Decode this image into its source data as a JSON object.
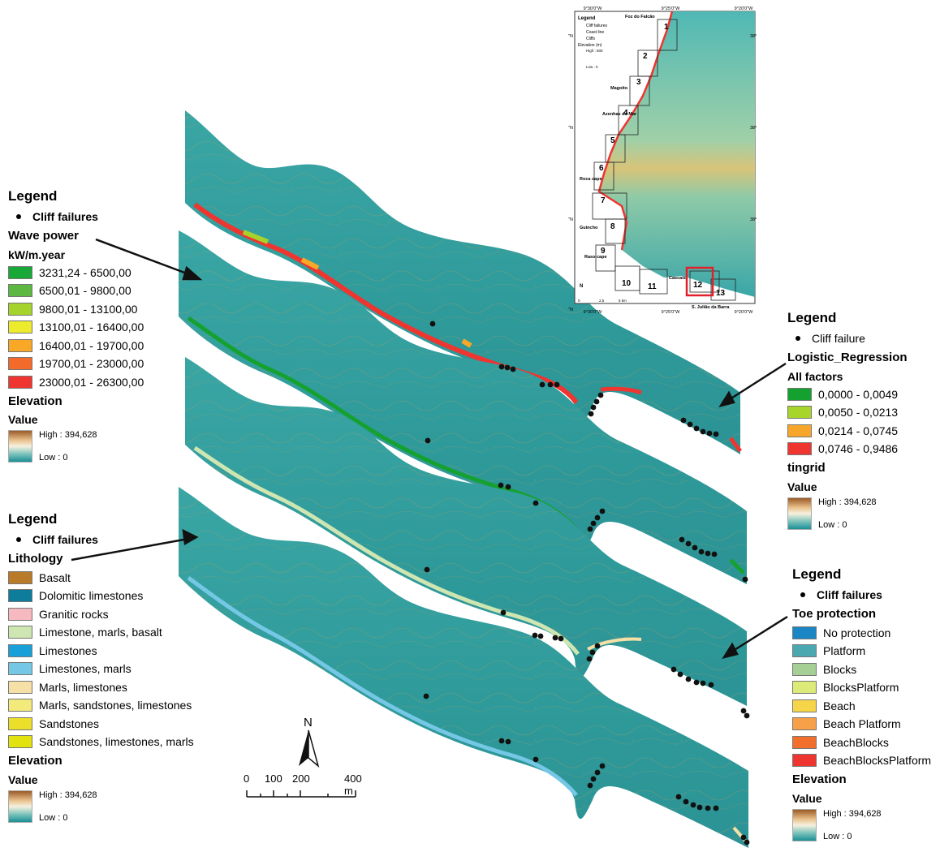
{
  "legend_wave": {
    "title": "Legend",
    "failures_label": "Cliff failures",
    "layer_title": "Wave power",
    "unit": "kW/m.year",
    "classes": [
      {
        "label": "3231,24 - 6500,00",
        "color": "#18a838"
      },
      {
        "label": "6500,01 - 9800,00",
        "color": "#5cb840"
      },
      {
        "label": "9800,01 - 13100,00",
        "color": "#a6d22c"
      },
      {
        "label": "13100,01 - 16400,00",
        "color": "#ecec2c"
      },
      {
        "label": "16400,01 - 19700,00",
        "color": "#f8a826"
      },
      {
        "label": "19700,01 - 23000,00",
        "color": "#f36a2a"
      },
      {
        "label": "23000,01 - 26300,00",
        "color": "#ee3530"
      }
    ],
    "elevation_title": "Elevation",
    "value_title": "Value",
    "high_label": "High : 394,628",
    "low_label": "Low : 0"
  },
  "legend_lithology": {
    "title": "Legend",
    "failures_label": "Cliff failures",
    "layer_title": "Lithology",
    "classes": [
      {
        "label": "Basalt",
        "color": "#b97a2a"
      },
      {
        "label": "Dolomitic limestones",
        "color": "#0e7d9c"
      },
      {
        "label": "Granitic rocks",
        "color": "#f6b9bf"
      },
      {
        "label": "Limestone, marls, basalt",
        "color": "#cfe6b3"
      },
      {
        "label": "Limestones",
        "color": "#19a0d8"
      },
      {
        "label": "Limestones, marls",
        "color": "#74c8e6"
      },
      {
        "label": "Marls, limestones",
        "color": "#f6e0a6"
      },
      {
        "label": "Marls, sandstones, limestones",
        "color": "#f2ea7a"
      },
      {
        "label": "Sandstones",
        "color": "#ecdf2a"
      },
      {
        "label": "Sandstones, limestones, marls",
        "color": "#e2e20e"
      }
    ],
    "elevation_title": "Elevation",
    "value_title": "Value",
    "high_label": "High : 394,628",
    "low_label": "Low : 0"
  },
  "legend_logistic": {
    "title": "Legend",
    "failures_label": "Cliff failure",
    "layer_title": "Logistic_Regression",
    "subtitle": "All factors",
    "classes": [
      {
        "label": "0,0000 - 0,0049",
        "color": "#15a12f"
      },
      {
        "label": "0,0050 - 0,0213",
        "color": "#a7d52a"
      },
      {
        "label": "0,0214 - 0,0745",
        "color": "#f7a62a"
      },
      {
        "label": "0,0746 - 0,9486",
        "color": "#ee3530"
      }
    ],
    "elevation_title": "tingrid",
    "value_title": "Value",
    "high_label": "High : 394,628",
    "low_label": "Low : 0"
  },
  "legend_toe": {
    "title": "Legend",
    "failures_label": "Cliff failures",
    "layer_title": "Toe protection",
    "classes": [
      {
        "label": "No protection",
        "color": "#1a86c4"
      },
      {
        "label": "Platform",
        "color": "#4aa8b0"
      },
      {
        "label": "Blocks",
        "color": "#a6cf96"
      },
      {
        "label": "BlocksPlatform",
        "color": "#dcea78"
      },
      {
        "label": "Beach",
        "color": "#f6d648"
      },
      {
        "label": "Beach Platform",
        "color": "#f7a04a"
      },
      {
        "label": "BeachBlocks",
        "color": "#f26e2c"
      },
      {
        "label": "BeachBlocksPlatform",
        "color": "#ee3530"
      }
    ],
    "elevation_title": "Elevation",
    "value_title": "Value",
    "high_label": "High : 394,628",
    "low_label": "Low : 0"
  },
  "scalebar": {
    "north_label": "N",
    "tick_labels": [
      "0",
      "100",
      "200",
      "400 m"
    ]
  },
  "inset_map": {
    "legend_title": "Legend",
    "legend_items": [
      "Cliff failures",
      "Coast line",
      "Cliffs"
    ],
    "elevation_title": "Elevation (m)",
    "high_label": "High : 500",
    "low_label": "Low : 0",
    "lon_labels_top": [
      "9°30'0\"W",
      "9°25'0\"W",
      "9°20'0\"W"
    ],
    "lon_labels_bottom": [
      "9°30'0\"W",
      "9°25'0\"W",
      "9°20'0\"W"
    ],
    "lat_labels_left": [
      "38°55'0\"N",
      "38°50'0\"N",
      "38°45'0\"N",
      "38°40'0\"N"
    ],
    "lat_labels_right": [
      "38°55'0\"N",
      "38°50'0\"N",
      "38°45'0\"N"
    ],
    "place_names": [
      "Foz do Falcão",
      "Magoito",
      "Azenhas do Mar",
      "Roca cape",
      "Guincho",
      "Raso cape",
      "Cascais",
      "S. Julião da Barra"
    ],
    "section_numbers": [
      "1",
      "2",
      "3",
      "4",
      "5",
      "6",
      "7",
      "8",
      "9",
      "10",
      "11",
      "12",
      "13"
    ],
    "north_label": "N",
    "scale_labels": [
      "0",
      "2,5",
      "5 km"
    ]
  }
}
